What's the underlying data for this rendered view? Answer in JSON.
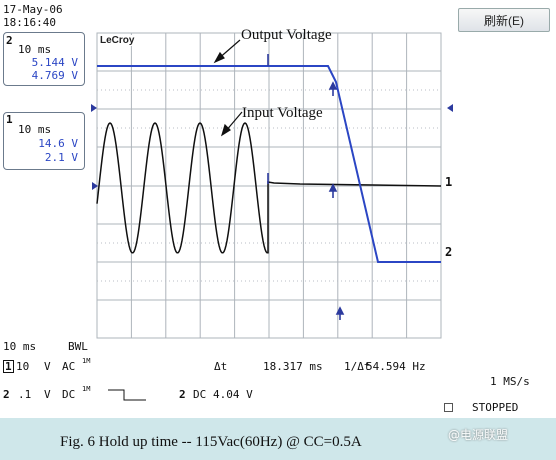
{
  "header": {
    "date": "17-May-06",
    "time": "18:16:40"
  },
  "refresh_button": {
    "label": "刷新(E)"
  },
  "scope": {
    "brand": "LeCroy"
  },
  "channels": {
    "ch2": {
      "number": "2",
      "timebase": "10 ms",
      "v1": "5.144 V",
      "v2": "4.769 V"
    },
    "ch1": {
      "number": "1",
      "timebase": "10 ms",
      "v1": "14.6 V",
      "v2": "2.1 V"
    }
  },
  "annotations": {
    "output": "Output Voltage",
    "input": "Input Voltage"
  },
  "trace_labels": {
    "ch1": "1",
    "ch2": "2"
  },
  "status": {
    "timebase": "10 ms",
    "bwl": "BWL",
    "ch1_line": {
      "ch": "1",
      "scale": "10",
      "unit": "V",
      "coupling": "AC",
      "sup": "1M"
    },
    "ch2_line": {
      "ch": "2",
      "scale": ".1",
      "unit": "V",
      "coupling": "DC",
      "sup": "1M"
    },
    "delta_t_label": "Δt",
    "delta_t_value": "18.317 ms",
    "inv_delta_t_label": "1/Δt",
    "inv_delta_t_value": "54.594 Hz",
    "sample_rate": "1 MS/s",
    "trigger": {
      "ch": "2",
      "coupling": "DC",
      "level": "4.04 V"
    },
    "state": "STOPPED"
  },
  "caption": {
    "text": "Fig. 6  Hold up time  -- 115Vac(60Hz) @ CC=0.5A"
  },
  "watermark": {
    "text": "@电源联盟"
  },
  "colors": {
    "grid": "#aeb4bb",
    "ch2_trace": "#2b46c4",
    "ch1_trace": "#101010",
    "caption_bg": "#cfe7ea"
  }
}
